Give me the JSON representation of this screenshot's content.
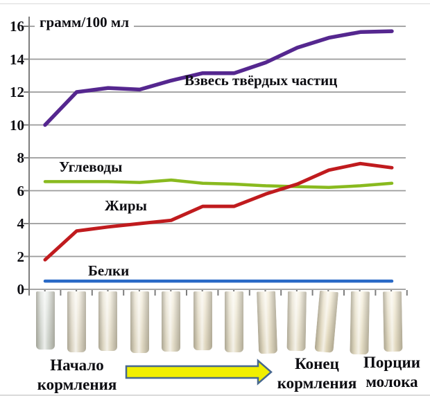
{
  "labels": {
    "start_of_feeding": "Начало кормления",
    "end_of_feeding": "Конец кормления",
    "milk_portions": "Порции молока"
  },
  "chart_data": {
    "type": "line",
    "unit_label": "грамм/100 мл",
    "x_axis": {
      "start_label": "Начало кормления",
      "end_label": "Конец кормления",
      "axis_label": "Порции молока",
      "portions": 12
    },
    "ylim": [
      0,
      16
    ],
    "yticks": [
      0,
      2,
      4,
      6,
      8,
      10,
      12,
      14,
      16
    ],
    "grid": true,
    "legend": "inline-labels",
    "series": [
      {
        "id": "solids",
        "name": "Взвесь твёрдых частиц",
        "color": "#55278f",
        "values": [
          10.0,
          12.0,
          12.25,
          12.15,
          12.7,
          13.15,
          13.15,
          13.8,
          14.7,
          15.3,
          15.65,
          15.7
        ]
      },
      {
        "id": "carbs",
        "name": "Углеводы",
        "color": "#89ba1f",
        "values": [
          6.55,
          6.55,
          6.55,
          6.5,
          6.65,
          6.45,
          6.4,
          6.3,
          6.25,
          6.2,
          6.3,
          6.45
        ]
      },
      {
        "id": "fats",
        "name": "Жиры",
        "color": "#c01b1e",
        "values": [
          1.8,
          3.55,
          3.8,
          4.0,
          4.2,
          5.05,
          5.05,
          5.8,
          6.4,
          7.25,
          7.65,
          7.4
        ]
      },
      {
        "id": "proteins",
        "name": "Белки",
        "color": "#2969c6",
        "values": [
          0.5,
          0.5,
          0.5,
          0.5,
          0.5,
          0.5,
          0.5,
          0.5,
          0.5,
          0.5,
          0.5,
          0.5
        ]
      }
    ]
  },
  "milk_portions": {
    "count": 12,
    "tints": [
      "#dde3de",
      "#f0e9d8",
      "#f1ead6",
      "#f0e8d2",
      "#f2ebd6",
      "#f0e7cf",
      "#f3ecd6",
      "#f1e8cf",
      "#f4edd8",
      "#f0e6c9",
      "#f4ecd3",
      "#f2e9cf"
    ]
  },
  "arrow": {
    "direction": "left-to-right",
    "fill": "#f1ef00",
    "outline": "#47688e"
  }
}
